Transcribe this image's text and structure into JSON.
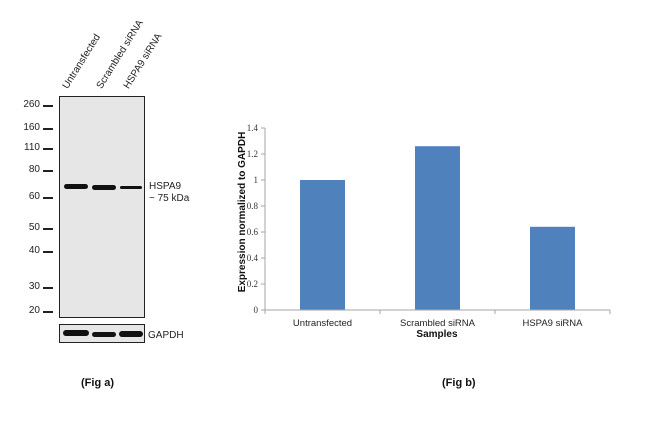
{
  "fig_a": {
    "caption": "(Fig a)",
    "lane_labels": [
      "Untransfected",
      "Scrambled siRNA",
      "HSPA9 siRNA"
    ],
    "mw_markers": [
      "260",
      "160",
      "110",
      "80",
      "60",
      "50",
      "40",
      "30",
      "20"
    ],
    "target_label": "HSPA9",
    "target_size": "~ 75 kDa",
    "loading_control": "GAPDH",
    "band_intensity": [
      1.0,
      1.0,
      0.6
    ],
    "gapdh_intensity": [
      1.0,
      0.9,
      0.95
    ]
  },
  "fig_b": {
    "caption": "(Fig b)"
  },
  "chart_data": {
    "type": "bar",
    "title": "",
    "categories": [
      "Untransfected",
      "Scrambled siRNA",
      "HSPA9  siRNA"
    ],
    "values": [
      1.0,
      1.26,
      0.64
    ],
    "xlabel": "Samples",
    "ylabel": "Expression normalized to GAPDH",
    "ylim": [
      0,
      1.4
    ],
    "yticks": [
      "0",
      "0.2",
      "0.4",
      "0.6",
      "0.8",
      "1",
      "1.2",
      "1.4"
    ],
    "grid": false,
    "legend": "none",
    "bar_color": "#4f81bd"
  }
}
